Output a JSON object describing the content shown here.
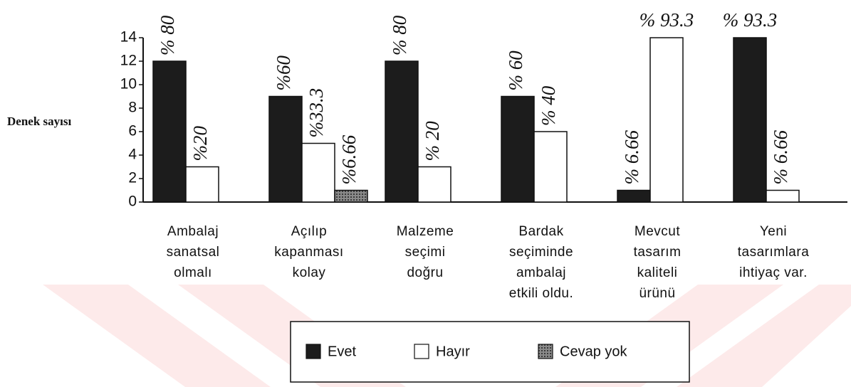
{
  "chart_data": {
    "type": "bar",
    "y_label": "Denek sayısı",
    "categories": [
      [
        "Ambalaj",
        "sanatsal",
        "olmalı"
      ],
      [
        "Açılıp",
        "kapanması",
        "kolay"
      ],
      [
        "Malzeme",
        "seçimi",
        "doğru"
      ],
      [
        "Bardak",
        "seçiminde",
        "ambalaj",
        "etkili   oldu."
      ],
      [
        "Mevcut",
        "tasarım",
        "kaliteli",
        "ürünü"
      ],
      [
        "Yeni",
        "tasarımlara",
        "ihtiyaç  var."
      ]
    ],
    "series": [
      {
        "name": "Evet",
        "color": "#1c1c1c",
        "values": [
          12,
          9,
          12,
          9,
          1,
          14
        ],
        "value_labels": [
          "% 80",
          "%60",
          "% 80",
          "% 60",
          "% 6.66",
          "% 93.3"
        ]
      },
      {
        "name": "Hayır",
        "color": "#ffffff",
        "values": [
          3,
          5,
          3,
          6,
          14,
          1
        ],
        "value_labels": [
          "%20",
          "%33.3",
          "% 20",
          "% 40",
          "% 93.3",
          "% 6.66"
        ]
      },
      {
        "name": "Cevap yok",
        "color": "#7a7a7a",
        "values": [
          null,
          1,
          null,
          null,
          null,
          null
        ],
        "value_labels": [
          null,
          "%6.66",
          null,
          null,
          null,
          null
        ]
      }
    ],
    "ylim": [
      0,
      14
    ],
    "yticks": [
      0,
      2,
      4,
      6,
      8,
      10,
      12,
      14
    ],
    "legend": "bottom"
  }
}
